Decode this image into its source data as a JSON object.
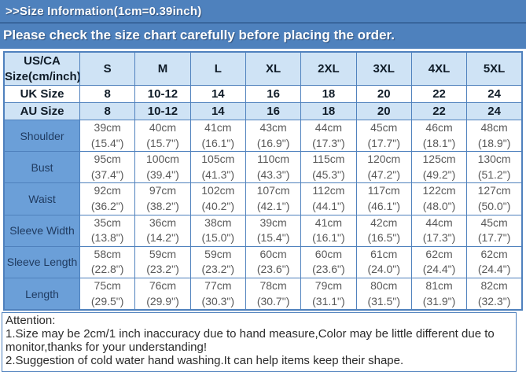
{
  "banner": {
    "info_line": ">>Size Information(1cm=0.39inch)",
    "notice_line": "Please check the size chart carefully before placing the order."
  },
  "size_table": {
    "corner_header": "US/CA\nSize(cm/inch)",
    "size_columns": [
      "S",
      "M",
      "L",
      "XL",
      "2XL",
      "3XL",
      "4XL",
      "5XL"
    ],
    "size_rows": [
      {
        "label": "UK Size",
        "values": [
          "8",
          "10-12",
          "14",
          "16",
          "18",
          "20",
          "22",
          "24"
        ]
      },
      {
        "label": "AU Size",
        "values": [
          "8",
          "10-12",
          "14",
          "16",
          "18",
          "20",
          "22",
          "24"
        ]
      }
    ],
    "measurement_rows": [
      {
        "label": "Shoulder",
        "values": [
          "39cm\n(15.4\")",
          "40cm\n(15.7\")",
          "41cm\n(16.1\")",
          "43cm\n(16.9\")",
          "44cm\n(17.3\")",
          "45cm\n(17.7\")",
          "46cm\n(18.1\")",
          "48cm\n(18.9\")"
        ]
      },
      {
        "label": "Bust",
        "values": [
          "95cm\n(37.4\")",
          "100cm\n(39.4\")",
          "105cm\n(41.3\")",
          "110cm\n(43.3\")",
          "115cm\n(45.3\")",
          "120cm\n(47.2\")",
          "125cm\n(49.2\")",
          "130cm\n(51.2\")"
        ]
      },
      {
        "label": "Waist",
        "values": [
          "92cm\n(36.2\")",
          "97cm\n(38.2\")",
          "102cm\n(40.2\")",
          "107cm\n(42.1\")",
          "112cm\n(44.1\")",
          "117cm\n(46.1\")",
          "122cm\n(48.0\")",
          "127cm\n(50.0\")"
        ]
      },
      {
        "label": "Sleeve Width",
        "values": [
          "35cm\n(13.8\")",
          "36cm\n(14.2\")",
          "38cm\n(15.0\")",
          "39cm\n(15.4\")",
          "41cm\n(16.1\")",
          "42cm\n(16.5\")",
          "44cm\n(17.3\")",
          "45cm\n(17.7\")"
        ]
      },
      {
        "label": "Sleeve Length",
        "values": [
          "58cm\n(22.8\")",
          "59cm\n(23.2\")",
          "59cm\n(23.2\")",
          "60cm\n(23.6\")",
          "60cm\n(23.6\")",
          "61cm\n(24.0\")",
          "62cm\n(24.4\")",
          "62cm\n(24.4\")"
        ]
      },
      {
        "label": "Length",
        "values": [
          "75cm\n(29.5\")",
          "76cm\n(29.9\")",
          "77cm\n(30.3\")",
          "78cm\n(30.7\")",
          "79cm\n(31.1\")",
          "80cm\n(31.5\")",
          "81cm\n(31.9\")",
          "82cm\n(32.3\")"
        ]
      }
    ]
  },
  "attention": {
    "title": "Attention:",
    "items": [
      "1.Size may be 2cm/1 inch inaccuracy due to hand measure,Color may be little different due to monitor,thanks for your understanding!",
      "2.Suggestion of cold water hand washing.It can help items keep their shape."
    ]
  },
  "colors": {
    "banner_bg": "#4e81bd",
    "table_border": "#4f81bd",
    "header_row_bg": "#cfe3f5",
    "alt_row_bg": "#cfe3f5",
    "label_column_bg": "#6b9fd8",
    "label_text": "#1f3a5f",
    "data_text": "#595959"
  }
}
